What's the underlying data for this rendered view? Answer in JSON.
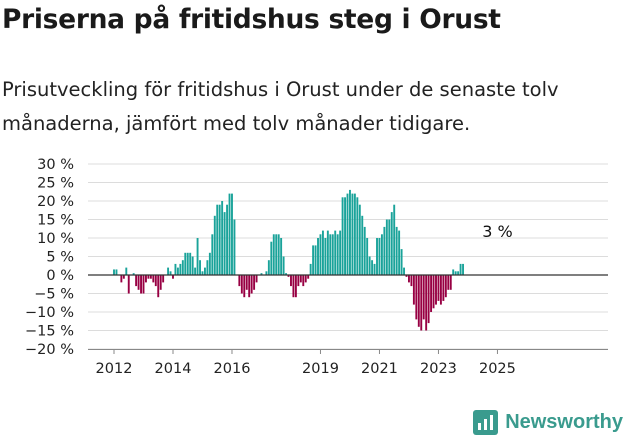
{
  "header": {
    "title": "Priserna på fritidshus steg i Orust",
    "subtitle": "Prisutveckling för fritidshus i Orust under de senaste tolv månaderna, jämfört med tolv månader tidigare."
  },
  "brand": {
    "name": "Newsworthy",
    "icon": "bar-chart-icon",
    "color": "#3a9b8e"
  },
  "chart_data": {
    "type": "bar",
    "title": "",
    "xlabel": "",
    "ylabel": "",
    "ylim": [
      -20,
      30
    ],
    "y_ticks": [
      30,
      25,
      20,
      15,
      10,
      5,
      0,
      -5,
      -10,
      -15,
      -20
    ],
    "y_tick_labels": [
      "30 %",
      "25 %",
      "20 %",
      "15 %",
      "10 %",
      "5 %",
      "0 %",
      "−5 %",
      "−10 %",
      "−15 %",
      "−20 %"
    ],
    "x_tick_labels": [
      "2012",
      "2014",
      "2016",
      "2019",
      "2021",
      "2023",
      "2025"
    ],
    "x_tick_years": [
      2012,
      2014,
      2016,
      2019,
      2021,
      2023,
      2025
    ],
    "grid": true,
    "colors": {
      "positive": "#1aa39a",
      "negative": "#980043"
    },
    "annotation": {
      "text": "3 %",
      "x": "2025-01",
      "value": 3
    },
    "start_month": "2012-01",
    "values": [
      1.5,
      1.5,
      0,
      -2,
      -1,
      2,
      -5,
      0,
      0.5,
      -3,
      -4,
      -5,
      -5,
      -2,
      -1,
      -1,
      -2,
      -3,
      -6,
      -4,
      -2,
      0,
      2,
      1,
      -1,
      3,
      2,
      3,
      4,
      6,
      6,
      6,
      5,
      2,
      10,
      4,
      1,
      2,
      4,
      6,
      11,
      16,
      19,
      19,
      20,
      17,
      19,
      22,
      22,
      15,
      0,
      -3,
      -5,
      -6,
      -4,
      -6,
      -5,
      -4,
      -2,
      0,
      0.5,
      0,
      1,
      4,
      9,
      11,
      11,
      11,
      10,
      5,
      0.5,
      -0.5,
      -3,
      -6,
      -6,
      -3,
      -2,
      -3,
      -2,
      -1,
      3,
      8,
      8,
      10,
      11,
      12,
      10,
      12,
      11,
      11,
      12,
      11,
      12,
      21,
      21,
      22,
      23,
      22,
      22,
      21,
      19,
      16,
      13,
      10,
      5,
      4,
      3,
      10,
      10,
      11,
      13,
      15,
      15,
      17,
      19,
      13,
      12,
      7,
      2,
      -0.5,
      -2,
      -3,
      -8,
      -12,
      -14,
      -15,
      -12,
      -15,
      -13,
      -10,
      -9,
      -8,
      -7,
      -8,
      -7,
      -6,
      -4,
      -4,
      1.5,
      1,
      1,
      3,
      3
    ]
  }
}
